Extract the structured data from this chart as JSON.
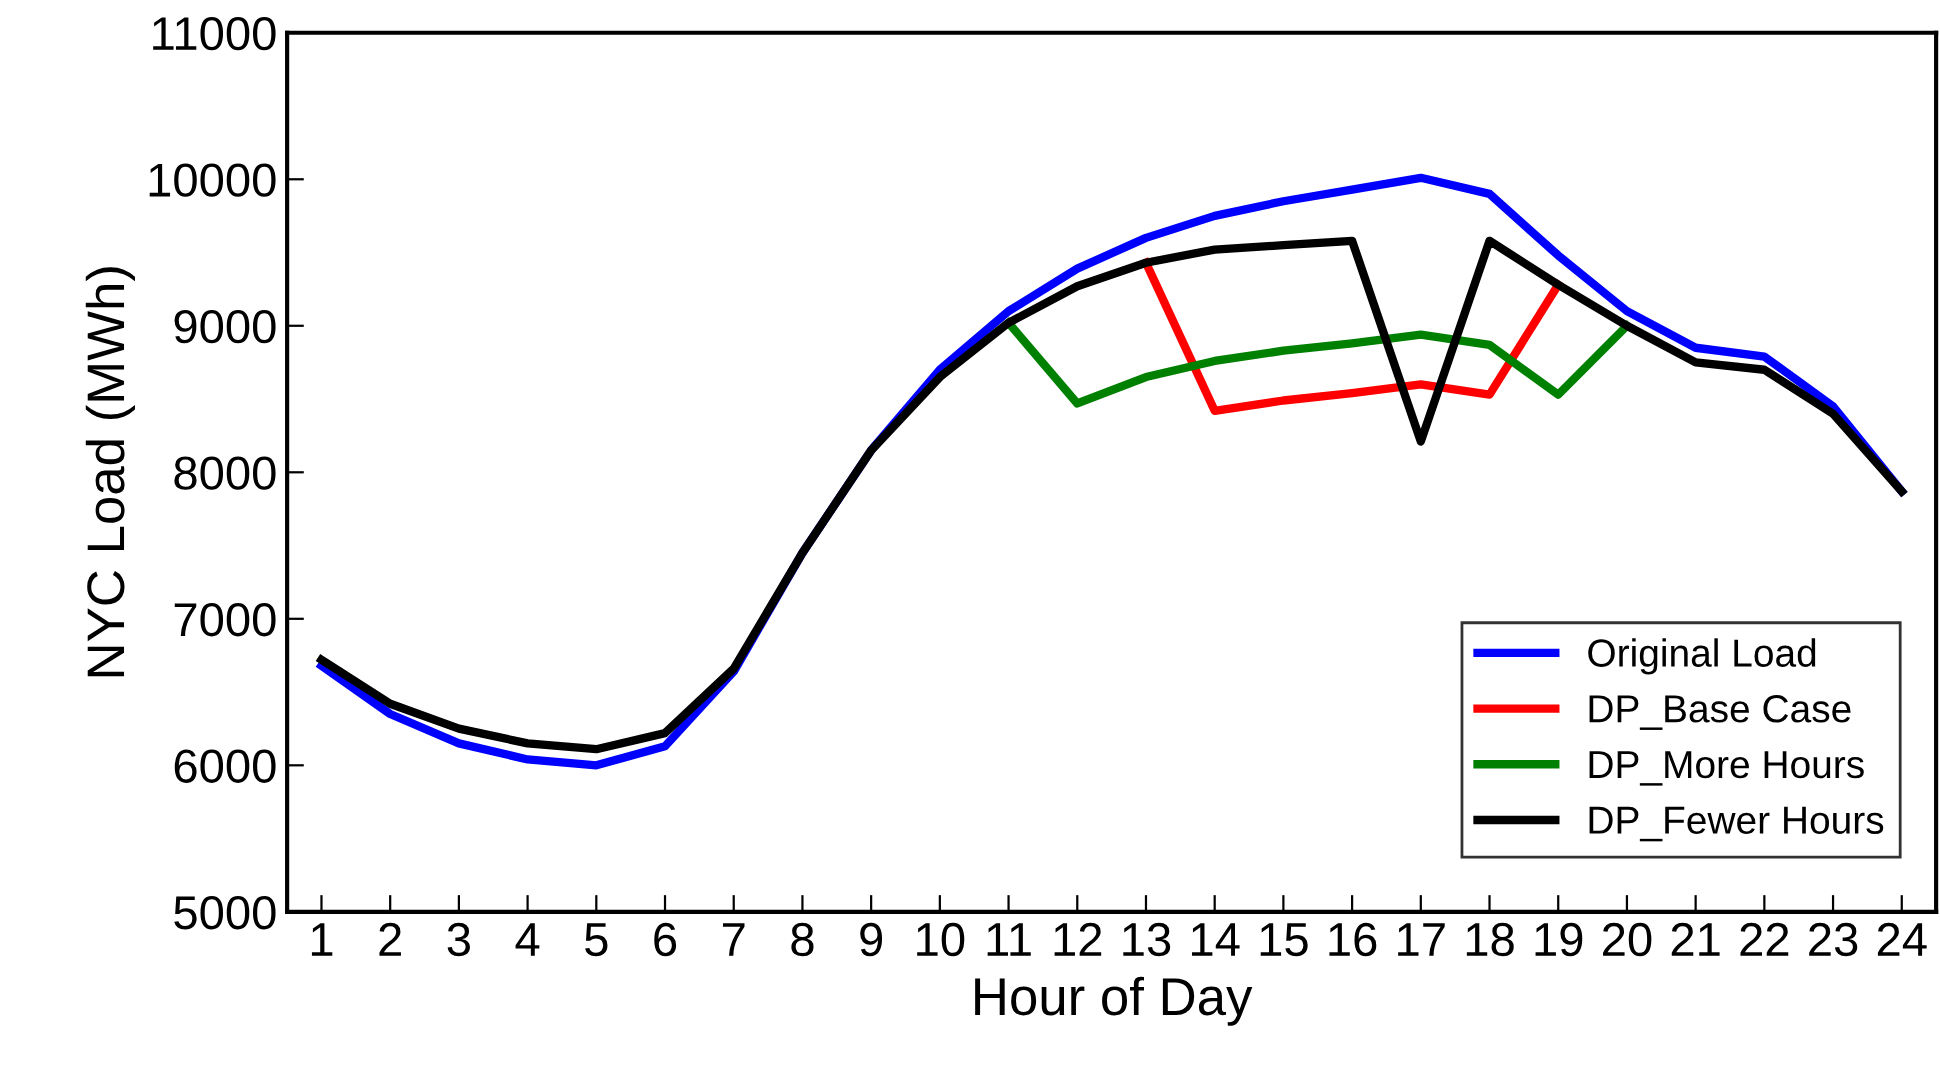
{
  "chart_data": {
    "type": "line",
    "xlabel": "Hour of Day",
    "ylabel": "NYC Load (MWh)",
    "categories": [
      "1",
      "2",
      "3",
      "4",
      "5",
      "6",
      "7",
      "8",
      "9",
      "10",
      "11",
      "12",
      "13",
      "14",
      "15",
      "16",
      "17",
      "18",
      "19",
      "20",
      "21",
      "22",
      "23",
      "24"
    ],
    "series": [
      {
        "name": "Original Load",
        "color": "#0000ff",
        "values": [
          6680,
          6350,
          6150,
          6040,
          6000,
          6130,
          6640,
          7450,
          8150,
          8700,
          9100,
          9390,
          9600,
          9750,
          9850,
          9930,
          10010,
          9900,
          9480,
          9100,
          8850,
          8790,
          8450,
          7870
        ]
      },
      {
        "name": "DP_Base Case",
        "color": "#ff0000",
        "values": [
          null,
          null,
          null,
          null,
          null,
          null,
          null,
          null,
          null,
          null,
          null,
          null,
          9430,
          8420,
          8490,
          8540,
          8600,
          8530,
          9280,
          null,
          null,
          null,
          null,
          null
        ]
      },
      {
        "name": "DP_More Hours",
        "color": "#008000",
        "values": [
          null,
          null,
          null,
          null,
          null,
          null,
          null,
          null,
          null,
          null,
          9020,
          8470,
          8650,
          8760,
          8830,
          8880,
          8940,
          8870,
          8530,
          9000,
          null,
          null,
          null,
          null
        ]
      },
      {
        "name": "DP_Fewer Hours",
        "color": "#000000",
        "values": [
          6720,
          6420,
          6250,
          6150,
          6110,
          6220,
          6660,
          7450,
          8150,
          8650,
          9020,
          9270,
          9430,
          9520,
          9550,
          9580,
          8210,
          9580,
          9280,
          9000,
          8750,
          8700,
          8400,
          7870
        ]
      }
    ],
    "ylim": [
      5000,
      11000
    ],
    "yticks": [
      5000,
      6000,
      7000,
      8000,
      9000,
      10000,
      11000
    ],
    "grid": false,
    "legend": "bottom right",
    "marker": "none",
    "line_style": "solid"
  }
}
